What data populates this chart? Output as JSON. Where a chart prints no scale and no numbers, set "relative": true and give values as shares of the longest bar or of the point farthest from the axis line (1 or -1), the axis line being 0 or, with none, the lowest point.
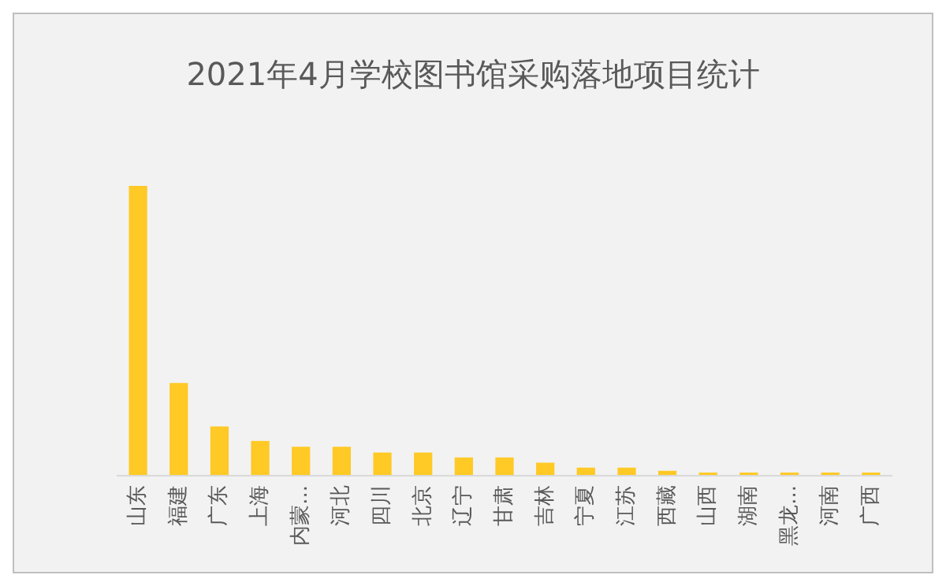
{
  "chart_data": {
    "type": "bar",
    "title": "2021年4月学校图书馆采购落地项目统计",
    "relative": true,
    "categories": [
      "山东",
      "福建",
      "广东",
      "上海",
      "内蒙...",
      "河北",
      "四川",
      "北京",
      "辽宁",
      "甘肃",
      "吉林",
      "宁夏",
      "江苏",
      "西藏",
      "山西",
      "湖南",
      "黑龙...",
      "河南",
      "广西"
    ],
    "values": [
      1,
      0.32,
      0.17,
      0.12,
      0.1,
      0.1,
      0.08,
      0.08,
      0.063,
      0.063,
      0.045,
      0.028,
      0.028,
      0.017,
      0.011,
      0.011,
      0.011,
      0.011,
      0.011
    ],
    "color": "#ffc926"
  }
}
